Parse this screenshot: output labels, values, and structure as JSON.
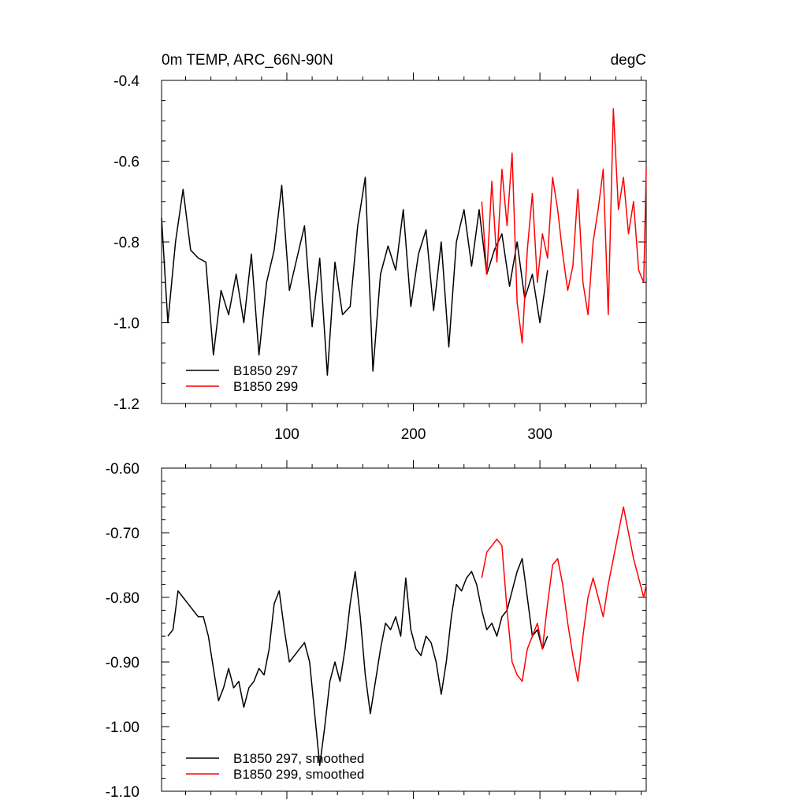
{
  "chart_data": [
    {
      "type": "line",
      "title": "0m TEMP, ARC_66N-90N",
      "unit_label": "degC",
      "xlabel": "",
      "ylabel": "",
      "xlim": [
        1,
        384
      ],
      "ylim": [
        -1.2,
        -0.4
      ],
      "x_ticks": [
        100,
        200,
        300
      ],
      "x_tick_labels": [
        "100",
        "200",
        "300"
      ],
      "y_ticks": [
        -1.2,
        -1.0,
        -0.8,
        -0.6,
        -0.4
      ],
      "y_tick_labels": [
        "-1.2",
        "-1.0",
        "-0.8",
        "-0.6",
        "-0.4"
      ],
      "grid": false,
      "legend_position": "bottom-left",
      "series": [
        {
          "name": "B1850 297",
          "color": "#000000",
          "x": [
            1,
            6,
            12,
            18,
            24,
            30,
            36,
            42,
            48,
            54,
            60,
            66,
            72,
            78,
            84,
            90,
            96,
            102,
            108,
            114,
            120,
            126,
            132,
            138,
            144,
            150,
            156,
            162,
            168,
            174,
            180,
            186,
            192,
            198,
            204,
            210,
            216,
            222,
            228,
            234,
            240,
            246,
            252,
            258,
            264,
            270,
            276,
            282,
            288,
            294,
            300,
            306
          ],
          "values": [
            -0.74,
            -1.0,
            -0.8,
            -0.67,
            -0.82,
            -0.84,
            -0.85,
            -1.08,
            -0.92,
            -0.98,
            -0.88,
            -1.0,
            -0.83,
            -1.08,
            -0.9,
            -0.82,
            -0.66,
            -0.92,
            -0.84,
            -0.76,
            -1.01,
            -0.84,
            -1.13,
            -0.85,
            -0.98,
            -0.96,
            -0.76,
            -0.64,
            -1.12,
            -0.88,
            -0.81,
            -0.87,
            -0.72,
            -0.96,
            -0.83,
            -0.77,
            -0.97,
            -0.8,
            -1.06,
            -0.8,
            -0.72,
            -0.86,
            -0.72,
            -0.88,
            -0.82,
            -0.78,
            -0.91,
            -0.8,
            -0.94,
            -0.88,
            -1.0,
            -0.87
          ]
        },
        {
          "name": "B1850 299",
          "color": "#ff0000",
          "x": [
            254,
            258,
            262,
            266,
            270,
            274,
            278,
            282,
            286,
            290,
            294,
            298,
            302,
            306,
            310,
            314,
            318,
            322,
            326,
            330,
            334,
            338,
            342,
            346,
            350,
            354,
            358,
            362,
            366,
            370,
            374,
            378,
            382,
            384
          ],
          "values": [
            -0.7,
            -0.88,
            -0.65,
            -0.85,
            -0.62,
            -0.76,
            -0.58,
            -0.95,
            -1.05,
            -0.82,
            -0.68,
            -0.9,
            -0.78,
            -0.84,
            -0.64,
            -0.72,
            -0.83,
            -0.92,
            -0.86,
            -0.67,
            -0.9,
            -0.98,
            -0.8,
            -0.72,
            -0.62,
            -0.98,
            -0.47,
            -0.72,
            -0.64,
            -0.78,
            -0.7,
            -0.87,
            -0.9,
            -0.62
          ]
        }
      ]
    },
    {
      "type": "line",
      "title": "",
      "xlabel": "",
      "ylabel": "",
      "xlim": [
        1,
        384
      ],
      "ylim": [
        -1.1,
        -0.6
      ],
      "x_ticks": [
        100,
        200,
        300
      ],
      "x_tick_labels": [],
      "y_ticks": [
        -1.1,
        -1.0,
        -0.9,
        -0.8,
        -0.7,
        -0.6
      ],
      "y_tick_labels": [
        "-1.10",
        "-1.00",
        "-0.90",
        "-0.80",
        "-0.70",
        "-0.60"
      ],
      "grid": false,
      "legend_position": "bottom-left",
      "series": [
        {
          "name": "B1850 297, smoothed",
          "color": "#000000",
          "x": [
            6,
            10,
            14,
            18,
            22,
            26,
            30,
            34,
            38,
            42,
            46,
            50,
            54,
            58,
            62,
            66,
            70,
            74,
            78,
            82,
            86,
            90,
            94,
            98,
            102,
            106,
            110,
            114,
            118,
            122,
            126,
            130,
            134,
            138,
            142,
            146,
            150,
            154,
            158,
            162,
            166,
            170,
            174,
            178,
            182,
            186,
            190,
            194,
            198,
            202,
            206,
            210,
            214,
            218,
            222,
            226,
            230,
            234,
            238,
            242,
            246,
            250,
            254,
            258,
            262,
            266,
            270,
            274,
            278,
            282,
            286,
            290,
            294,
            298,
            302,
            306
          ],
          "values": [
            -0.86,
            -0.85,
            -0.79,
            -0.8,
            -0.81,
            -0.82,
            -0.83,
            -0.83,
            -0.86,
            -0.91,
            -0.96,
            -0.94,
            -0.91,
            -0.94,
            -0.93,
            -0.97,
            -0.94,
            -0.93,
            -0.91,
            -0.92,
            -0.88,
            -0.81,
            -0.79,
            -0.85,
            -0.9,
            -0.89,
            -0.88,
            -0.87,
            -0.9,
            -0.98,
            -1.06,
            -1.0,
            -0.93,
            -0.9,
            -0.93,
            -0.88,
            -0.81,
            -0.76,
            -0.83,
            -0.92,
            -0.98,
            -0.93,
            -0.88,
            -0.84,
            -0.85,
            -0.83,
            -0.86,
            -0.77,
            -0.85,
            -0.88,
            -0.89,
            -0.86,
            -0.87,
            -0.9,
            -0.95,
            -0.9,
            -0.83,
            -0.78,
            -0.79,
            -0.77,
            -0.76,
            -0.78,
            -0.82,
            -0.85,
            -0.84,
            -0.86,
            -0.83,
            -0.82,
            -0.79,
            -0.76,
            -0.74,
            -0.8,
            -0.86,
            -0.85,
            -0.88,
            -0.86
          ]
        },
        {
          "name": "B1850 299, smoothed",
          "color": "#ff0000",
          "x": [
            254,
            258,
            262,
            266,
            270,
            274,
            278,
            282,
            286,
            290,
            294,
            298,
            302,
            306,
            310,
            314,
            318,
            322,
            326,
            330,
            334,
            338,
            342,
            346,
            350,
            354,
            358,
            362,
            366,
            370,
            374,
            378,
            382,
            384
          ],
          "values": [
            -0.77,
            -0.73,
            -0.72,
            -0.71,
            -0.72,
            -0.82,
            -0.9,
            -0.92,
            -0.93,
            -0.88,
            -0.86,
            -0.84,
            -0.88,
            -0.81,
            -0.75,
            -0.74,
            -0.78,
            -0.84,
            -0.89,
            -0.93,
            -0.86,
            -0.8,
            -0.77,
            -0.8,
            -0.83,
            -0.78,
            -0.74,
            -0.7,
            -0.66,
            -0.7,
            -0.74,
            -0.77,
            -0.8,
            -0.78
          ]
        }
      ]
    }
  ]
}
